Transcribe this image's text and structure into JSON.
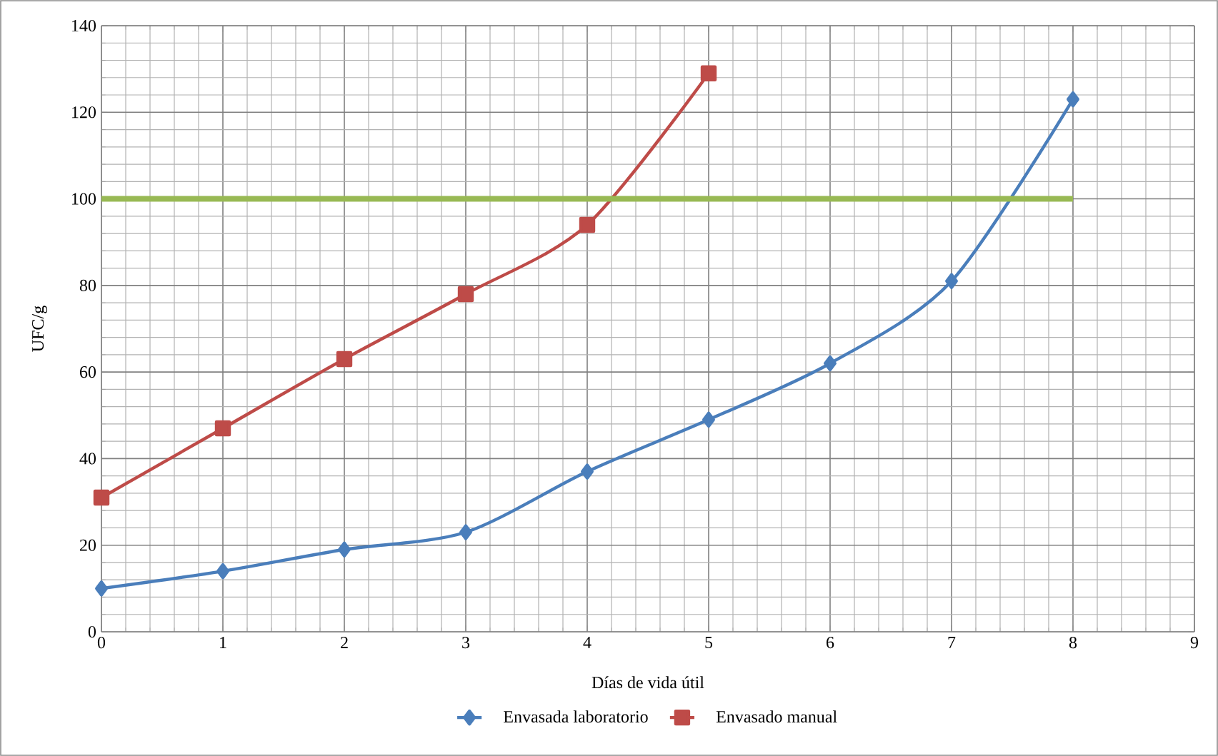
{
  "chart_data": {
    "type": "line",
    "xlabel": "Días de vida útil",
    "ylabel": "UFC/g",
    "xlim": [
      0,
      9
    ],
    "xticks": [
      0,
      1,
      2,
      3,
      4,
      5,
      6,
      7,
      8,
      9
    ],
    "ylim": [
      0,
      140
    ],
    "yticks": [
      0,
      20,
      40,
      60,
      80,
      100,
      120,
      140
    ],
    "grid": true,
    "legend": "bottom",
    "line_style": "solid",
    "series": [
      {
        "name": "Envasada laboratorio",
        "color": "#4a7ebb",
        "marker": "diamond",
        "x": [
          0,
          1,
          2,
          3,
          4,
          5,
          6,
          7,
          8
        ],
        "values": [
          10,
          14,
          19,
          23,
          37,
          49,
          62,
          81,
          123
        ]
      },
      {
        "name": "Envasado manual",
        "color": "#be4b48",
        "marker": "square",
        "x": [
          0,
          1,
          2,
          3,
          4,
          5
        ],
        "values": [
          31,
          47,
          63,
          78,
          94,
          129
        ]
      },
      {
        "color": "#98b954",
        "marker": "none",
        "x": [
          0,
          1,
          2,
          3,
          4,
          5,
          6,
          7,
          8
        ],
        "values": [
          100,
          100,
          100,
          100,
          100,
          100,
          100,
          100,
          100
        ]
      }
    ]
  }
}
